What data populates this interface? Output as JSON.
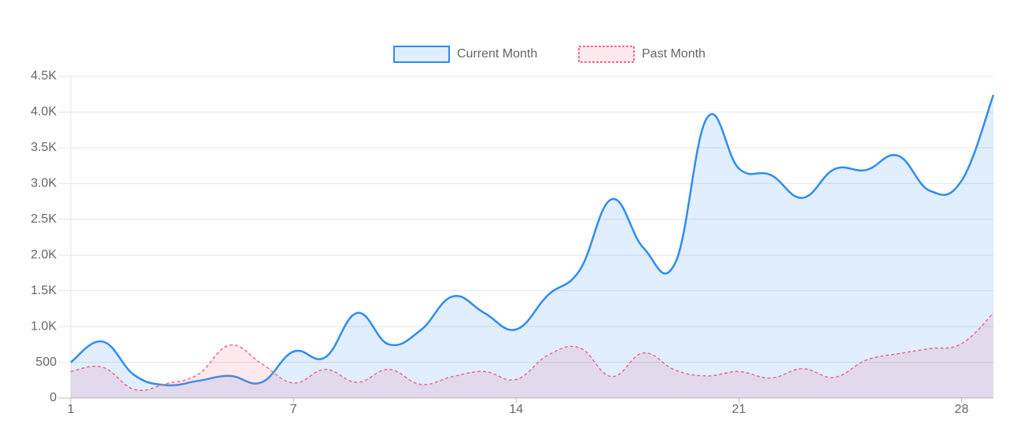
{
  "chart_data": {
    "type": "line",
    "categories": [
      "1",
      null,
      null,
      null,
      null,
      null,
      null,
      "7",
      null,
      null,
      null,
      null,
      null,
      null,
      "14",
      null,
      null,
      null,
      null,
      null,
      null,
      "21",
      null,
      null,
      null,
      null,
      null,
      null,
      "28",
      null
    ],
    "series": [
      {
        "name": "Current Month",
        "color": "#2f8cf0",
        "fill": "rgba(47,140,240,0.15)",
        "dashed": false,
        "values": [
          500,
          790,
          320,
          180,
          240,
          310,
          220,
          650,
          570,
          1190,
          750,
          950,
          1420,
          1190,
          960,
          1440,
          1790,
          2780,
          2100,
          1890,
          3920,
          3210,
          3120,
          2800,
          3200,
          3190,
          3390,
          2900,
          3040,
          4240
        ]
      },
      {
        "name": "Past Month",
        "color": "#f06a8a",
        "fill": "rgba(240,106,138,0.15)",
        "dashed": true,
        "values": [
          370,
          430,
          120,
          200,
          330,
          740,
          480,
          210,
          400,
          220,
          400,
          190,
          300,
          370,
          260,
          600,
          700,
          300,
          630,
          390,
          310,
          370,
          280,
          410,
          290,
          530,
          620,
          690,
          760,
          1190
        ]
      }
    ],
    "ylim": [
      0,
      4500
    ],
    "yticks": [
      0,
      500,
      {
        "value": 1000,
        "label": "1.0K"
      },
      {
        "value": 1500,
        "label": "1.5K"
      },
      {
        "value": 2000,
        "label": "2.0K"
      },
      {
        "value": 2500,
        "label": "2.5K"
      },
      {
        "value": 3000,
        "label": "3.0K"
      },
      {
        "value": 3500,
        "label": "3.5K"
      },
      {
        "value": 4000,
        "label": "4.0K"
      },
      {
        "value": 4500,
        "label": "4.5K"
      }
    ],
    "grid": true,
    "legend": "top"
  }
}
